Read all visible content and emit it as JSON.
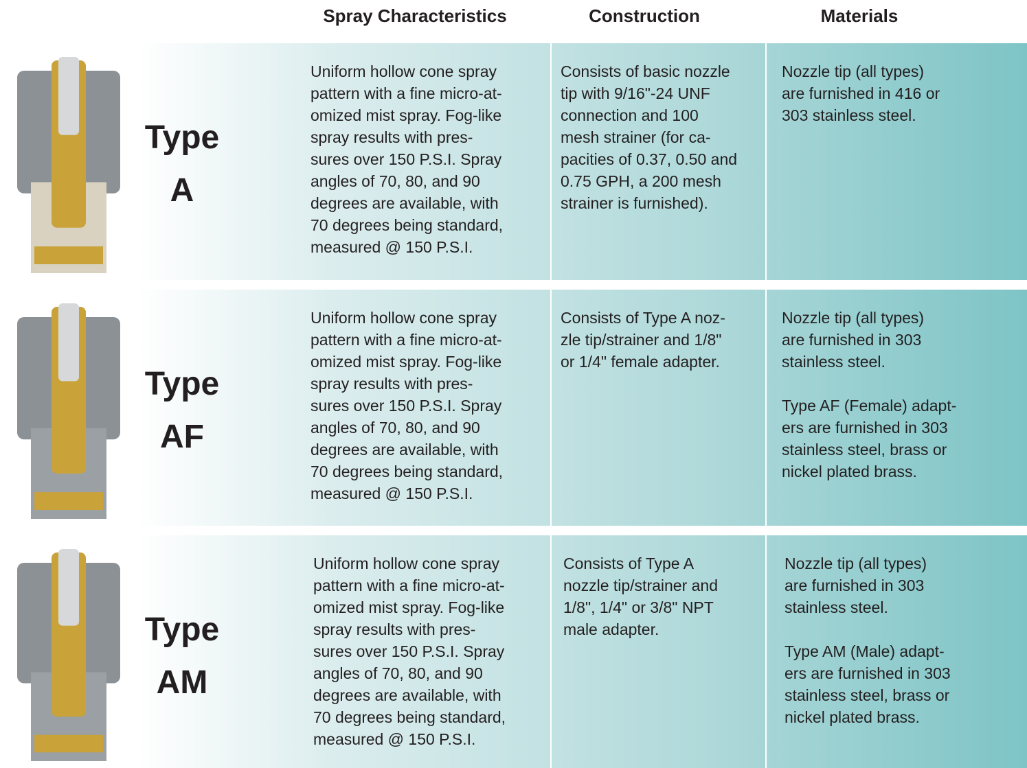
{
  "header": {
    "columns": [
      "Spray Characteristics",
      "Construction",
      "Materials"
    ]
  },
  "rows": [
    {
      "type": [
        "Type",
        "A"
      ],
      "spray": [
        [
          "Uniform hollow cone spray",
          "pattern with a fine micro-at-",
          "omized mist spray. Fog-like",
          "spray results with pres-",
          "sures over 150 P.S.I. Spray",
          "angles of 70, 80, and 90",
          "degrees are available, with",
          "70 degrees being standard,",
          "measured @ 150 P.S.I."
        ]
      ],
      "construction": [
        [
          "Consists of basic nozzle",
          "tip with 9/16\"-24 UNF",
          "connection and 100",
          "mesh strainer (for ca-",
          "pacities of 0.37, 0.50 and",
          "0.75 GPH, a 200 mesh",
          "strainer is furnished)."
        ]
      ],
      "materials": [
        [
          "Nozzle tip (all types)",
          "are furnished in 416 or",
          "303 stainless steel."
        ]
      ]
    },
    {
      "type": [
        "Type",
        "AF"
      ],
      "spray": [
        [
          "Uniform hollow cone spray",
          "pattern with a fine micro-at-",
          "omized mist spray. Fog-like",
          "spray results with pres-",
          "sures over 150 P.S.I. Spray",
          "angles of 70, 80, and 90",
          "degrees are available, with",
          "70 degrees being standard,",
          "measured @ 150 P.S.I."
        ]
      ],
      "construction": [
        [
          "Consists of Type A noz-",
          "zle tip/strainer and 1/8\"",
          "or 1/4\" female adapter."
        ]
      ],
      "materials": [
        [
          "Nozzle tip (all types)",
          "are furnished in 303",
          "stainless steel."
        ],
        [
          "Type AF (Female) adapt-",
          "ers are furnished in 303",
          "stainless steel, brass or",
          "nickel plated brass."
        ]
      ]
    },
    {
      "type": [
        "Type",
        "AM"
      ],
      "spray": [
        [
          "Uniform hollow cone spray",
          "pattern with a fine micro-at-",
          "omized mist spray. Fog-like",
          "spray results with pres-",
          "sures over 150 P.S.I. Spray",
          "angles of 70, 80, and 90",
          "degrees are available, with",
          "70 degrees being standard,",
          "measured @ 150 P.S.I."
        ]
      ],
      "construction": [
        [
          "Consists of Type A",
          "nozzle tip/strainer and",
          "1/8\", 1/4\" or 3/8\" NPT",
          "male adapter."
        ]
      ],
      "materials": [
        [
          "Nozzle tip (all types)",
          "are furnished in 303",
          "stainless steel."
        ],
        [
          "Type AM (Male) adapt-",
          "ers are furnished in 303",
          "stainless steel, brass or",
          "nickel plated brass."
        ]
      ]
    }
  ]
}
